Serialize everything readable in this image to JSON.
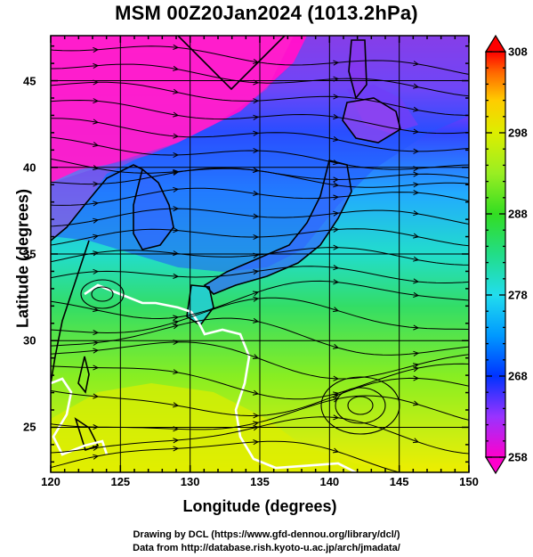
{
  "title": "MSM 00Z20Jan2024 (1013.2hPa)",
  "x_axis": {
    "label": "Longitude (degrees)",
    "ticks": [
      "120",
      "125",
      "130",
      "135",
      "140",
      "145",
      "150"
    ],
    "range": [
      120,
      150
    ]
  },
  "y_axis": {
    "label": "Latitude  (degrees)",
    "ticks": [
      "25",
      "30",
      "35",
      "40",
      "45"
    ],
    "range": [
      22.4,
      47.6
    ]
  },
  "colorbar": {
    "ticks": [
      "258",
      "268",
      "278",
      "288",
      "298",
      "308"
    ],
    "range": [
      258,
      308
    ],
    "colors": [
      "#ff00cc",
      "#9933ff",
      "#0033ff",
      "#0099ff",
      "#22ddee",
      "#22dd88",
      "#33dd22",
      "#99ee22",
      "#ddee00",
      "#ffcc00",
      "#ff6600",
      "#ff0000"
    ]
  },
  "credits": {
    "line1": "Drawing by DCL (https://www.gfd-dennou.org/library/dcl/)",
    "line2": "Data from http://database.rish.kyoto-u.ac.jp/arch/jmadata/"
  },
  "chart_data": {
    "type": "heatmap",
    "field": "temperature with wind streamlines",
    "title": "MSM 00Z20Jan2024 (1013.2hPa)",
    "xlabel": "Longitude (degrees)",
    "ylabel": "Latitude  (degrees)",
    "xlim": [
      120,
      150
    ],
    "ylim": [
      22.4,
      47.6
    ],
    "colorbar_range": [
      258,
      308
    ],
    "colorbar_ticks": [
      258,
      268,
      278,
      288,
      298,
      308
    ],
    "grid": true,
    "has_streamlines": true,
    "has_coastlines": true,
    "has_white_contour": true
  }
}
